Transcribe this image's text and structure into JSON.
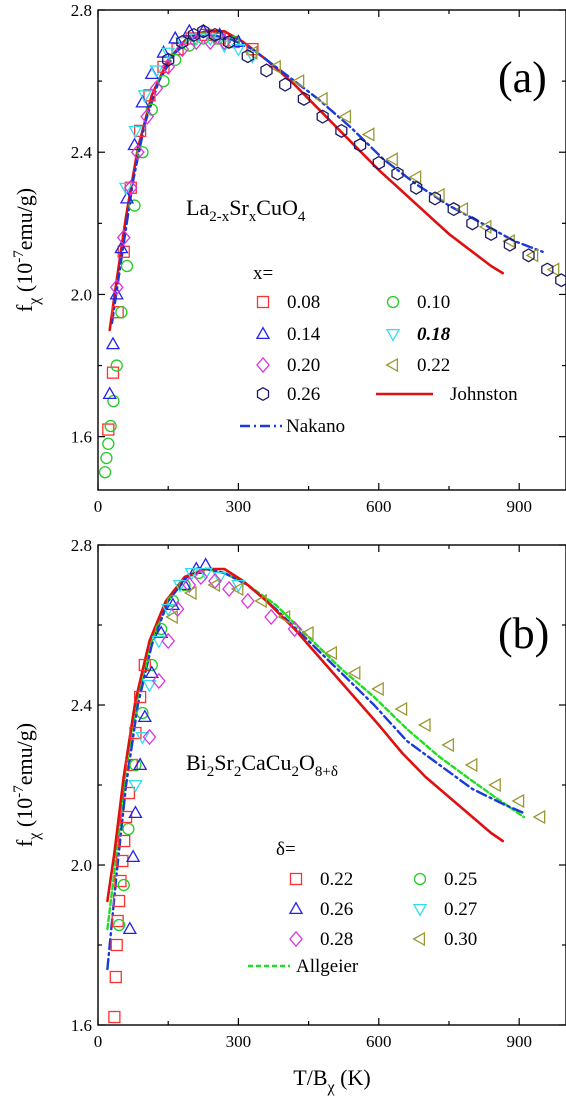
{
  "chart_data": [
    {
      "type": "scatter",
      "panel_label": "(a)",
      "compound": {
        "base": "La",
        "sub1": "2-x",
        "mid": "Sr",
        "sub2": "x",
        "rest": "CuO",
        "sub3": "4"
      },
      "ylabel": {
        "main": "f",
        "sub": "χ",
        "unit_open": " (10",
        "sup": "-7",
        "unit_close": "emu/g)"
      },
      "xlim": [
        0,
        1000
      ],
      "ylim": [
        1.45,
        2.8
      ],
      "xticks": [
        "0",
        "300",
        "600",
        "900"
      ],
      "yticks": [
        "1.6",
        "2.0",
        "2.4",
        "2.8"
      ],
      "legend_title": "x=",
      "series": [
        {
          "name": "0.08",
          "marker": "square",
          "color": "#ff3030",
          "x": [
            22,
            32,
            42,
            55,
            70,
            90,
            110,
            140,
            170,
            200,
            230,
            260,
            290,
            330
          ],
          "y": [
            1.62,
            1.78,
            1.95,
            2.12,
            2.3,
            2.46,
            2.56,
            2.64,
            2.69,
            2.72,
            2.73,
            2.72,
            2.71,
            2.69
          ]
        },
        {
          "name": "0.10",
          "marker": "circle",
          "color": "#22cc22",
          "x": [
            15,
            18,
            22,
            27,
            33,
            40,
            50,
            62,
            78,
            95,
            115,
            140,
            165,
            195,
            225,
            255,
            290
          ],
          "y": [
            1.5,
            1.54,
            1.58,
            1.63,
            1.7,
            1.8,
            1.95,
            2.08,
            2.25,
            2.4,
            2.52,
            2.6,
            2.66,
            2.7,
            2.72,
            2.72,
            2.71
          ]
        },
        {
          "name": "0.14",
          "marker": "triangle-up",
          "color": "#2222ee",
          "x": [
            25,
            32,
            40,
            50,
            62,
            78,
            95,
            115,
            140,
            165,
            195,
            225,
            260,
            300
          ],
          "y": [
            1.72,
            1.86,
            2.0,
            2.13,
            2.27,
            2.42,
            2.54,
            2.62,
            2.68,
            2.72,
            2.74,
            2.74,
            2.73,
            2.71
          ]
        },
        {
          "name": "0.18",
          "marker": "triangle-down",
          "color": "#33ddee",
          "x": [
            60,
            80,
            100,
            125,
            150,
            180,
            210,
            240,
            270,
            300,
            330
          ],
          "y": [
            2.3,
            2.46,
            2.56,
            2.63,
            2.68,
            2.71,
            2.72,
            2.72,
            2.7,
            2.69,
            2.67
          ]
        },
        {
          "name": "0.20",
          "marker": "diamond",
          "color": "#dd33dd",
          "x": [
            40,
            55,
            70,
            85,
            105,
            125,
            150,
            180,
            210,
            240,
            270
          ],
          "y": [
            2.02,
            2.16,
            2.3,
            2.4,
            2.5,
            2.58,
            2.64,
            2.69,
            2.71,
            2.71,
            2.71
          ]
        },
        {
          "name": "0.22",
          "marker": "triangle-left",
          "color": "#999933",
          "x": [
            330,
            380,
            430,
            480,
            530,
            580,
            630,
            680,
            730,
            780,
            830,
            880,
            930,
            975
          ],
          "y": [
            2.68,
            2.64,
            2.6,
            2.55,
            2.5,
            2.45,
            2.38,
            2.33,
            2.28,
            2.24,
            2.19,
            2.15,
            2.11,
            2.07
          ]
        },
        {
          "name": "0.26",
          "marker": "hexagon",
          "color": "#1a1a66",
          "x": [
            150,
            180,
            205,
            225,
            250,
            280,
            320,
            360,
            400,
            440,
            480,
            520,
            560,
            600,
            640,
            680,
            720,
            760,
            800,
            840,
            880,
            920,
            960,
            990
          ],
          "y": [
            2.66,
            2.71,
            2.73,
            2.74,
            2.73,
            2.71,
            2.67,
            2.63,
            2.59,
            2.55,
            2.5,
            2.46,
            2.42,
            2.37,
            2.34,
            2.3,
            2.27,
            2.24,
            2.2,
            2.17,
            2.14,
            2.11,
            2.07,
            2.04
          ]
        },
        {
          "name": "Johnston",
          "marker": "line",
          "color": "#e01010",
          "x": [
            25,
            40,
            60,
            85,
            115,
            150,
            190,
            230,
            270,
            310,
            360,
            420,
            480,
            540,
            600,
            650,
            700,
            750,
            800,
            840,
            865
          ],
          "y": [
            1.9,
            2.04,
            2.22,
            2.41,
            2.56,
            2.66,
            2.72,
            2.74,
            2.74,
            2.71,
            2.66,
            2.59,
            2.51,
            2.43,
            2.35,
            2.29,
            2.23,
            2.17,
            2.12,
            2.08,
            2.06
          ]
        },
        {
          "name": "Nakano",
          "marker": "dashdot",
          "color": "#1a3ad9",
          "x": [
            30,
            50,
            75,
            100,
            130,
            165,
            200,
            240,
            280,
            330,
            400,
            470,
            540,
            610,
            680,
            750,
            820,
            890,
            950
          ],
          "y": [
            1.92,
            2.1,
            2.32,
            2.48,
            2.6,
            2.68,
            2.72,
            2.73,
            2.72,
            2.69,
            2.62,
            2.55,
            2.47,
            2.38,
            2.31,
            2.25,
            2.2,
            2.15,
            2.12
          ]
        }
      ]
    },
    {
      "type": "scatter",
      "panel_label": "(b)",
      "compound": {
        "parts": [
          "Bi",
          "2",
          "Sr",
          "2",
          "CaCu",
          "2",
          "O",
          "8+δ"
        ]
      },
      "ylabel": {
        "main": "f",
        "sub": "χ",
        "unit_open": " (10",
        "sup": "-7",
        "unit_close": "emu/g)"
      },
      "xlabel": {
        "main": "T/B",
        "sub": "χ",
        "rest": " (K)"
      },
      "xlim": [
        0,
        1000
      ],
      "ylim": [
        1.6,
        2.8
      ],
      "xticks": [
        "0",
        "300",
        "600",
        "900"
      ],
      "yticks": [
        "1.6",
        "2.0",
        "2.4",
        "2.8"
      ],
      "legend_title": "δ=",
      "series": [
        {
          "name": "0.22",
          "marker": "square",
          "color": "#ff3030",
          "x": [
            35,
            38,
            40,
            42,
            45,
            48,
            52,
            56,
            60,
            66,
            72,
            80,
            90,
            100
          ],
          "y": [
            1.62,
            1.72,
            1.8,
            1.86,
            1.91,
            1.96,
            2.01,
            2.06,
            2.12,
            2.18,
            2.25,
            2.33,
            2.42,
            2.5
          ]
        },
        {
          "name": "0.25",
          "marker": "circle",
          "color": "#22cc22",
          "x": [
            45,
            55,
            65,
            80,
            95,
            115,
            135,
            160,
            185,
            215
          ],
          "y": [
            1.85,
            1.95,
            2.09,
            2.25,
            2.38,
            2.5,
            2.59,
            2.66,
            2.7,
            2.73
          ]
        },
        {
          "name": "0.26",
          "marker": "triangle-up",
          "color": "#2222ee",
          "x": [
            68,
            75,
            80,
            90,
            100,
            115,
            135,
            160,
            185,
            210,
            230
          ],
          "y": [
            1.84,
            2.02,
            2.13,
            2.25,
            2.37,
            2.48,
            2.58,
            2.65,
            2.7,
            2.74,
            2.75
          ]
        },
        {
          "name": "0.27",
          "marker": "triangle-down",
          "color": "#33ddee",
          "x": [
            80,
            95,
            110,
            130,
            150,
            175,
            200,
            230,
            260,
            300
          ],
          "y": [
            2.2,
            2.32,
            2.45,
            2.56,
            2.64,
            2.7,
            2.73,
            2.73,
            2.72,
            2.7
          ]
        },
        {
          "name": "0.28",
          "marker": "diamond",
          "color": "#dd33dd",
          "x": [
            110,
            130,
            150,
            170,
            195,
            220,
            250,
            280,
            320,
            370,
            420
          ],
          "y": [
            2.32,
            2.46,
            2.56,
            2.64,
            2.7,
            2.72,
            2.71,
            2.69,
            2.66,
            2.62,
            2.59
          ]
        },
        {
          "name": "0.30",
          "marker": "triangle-left",
          "color": "#999933",
          "x": [
            160,
            200,
            250,
            300,
            350,
            400,
            450,
            500,
            550,
            600,
            650,
            700,
            750,
            800,
            850,
            900,
            945
          ],
          "y": [
            2.62,
            2.68,
            2.7,
            2.69,
            2.66,
            2.62,
            2.58,
            2.53,
            2.48,
            2.44,
            2.39,
            2.35,
            2.3,
            2.25,
            2.2,
            2.16,
            2.12
          ]
        },
        {
          "name": "Allgeier",
          "marker": "dashed",
          "color": "#22dd22",
          "x": [
            20,
            40,
            60,
            85,
            115,
            150,
            190,
            230,
            270,
            320,
            380,
            450,
            520,
            590,
            660,
            730,
            800,
            860,
            910
          ],
          "y": [
            1.84,
            2.03,
            2.24,
            2.42,
            2.56,
            2.66,
            2.72,
            2.74,
            2.73,
            2.7,
            2.65,
            2.57,
            2.49,
            2.42,
            2.34,
            2.27,
            2.21,
            2.16,
            2.12
          ]
        },
        {
          "name": "blue-dashdot",
          "marker": "dashdot",
          "color": "#1a3ad9",
          "hidden_label": true,
          "x": [
            20,
            40,
            60,
            85,
            115,
            150,
            190,
            230,
            270,
            320,
            380,
            450,
            520,
            590,
            660,
            730,
            800,
            870,
            910
          ],
          "y": [
            1.74,
            1.98,
            2.2,
            2.4,
            2.55,
            2.66,
            2.72,
            2.74,
            2.73,
            2.7,
            2.64,
            2.56,
            2.48,
            2.4,
            2.31,
            2.25,
            2.19,
            2.15,
            2.13
          ]
        },
        {
          "name": "Johnston",
          "marker": "line",
          "color": "#e01010",
          "hidden_label": true,
          "x": [
            20,
            35,
            55,
            80,
            110,
            145,
            185,
            230,
            270,
            310,
            360,
            420,
            480,
            540,
            600,
            650,
            700,
            750,
            800,
            840,
            865
          ],
          "y": [
            1.91,
            2.03,
            2.22,
            2.41,
            2.56,
            2.66,
            2.72,
            2.74,
            2.74,
            2.71,
            2.66,
            2.59,
            2.51,
            2.43,
            2.35,
            2.28,
            2.22,
            2.17,
            2.12,
            2.08,
            2.06
          ]
        }
      ]
    }
  ]
}
